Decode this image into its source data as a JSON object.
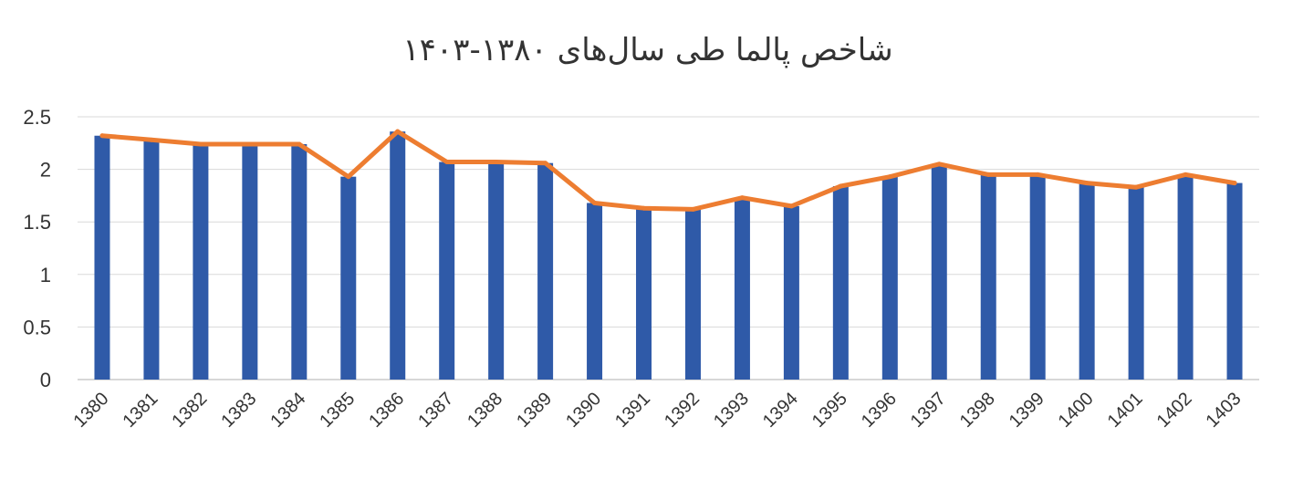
{
  "chart_data": {
    "type": "bar",
    "title": "شاخص پالما طی سال‌های ۱۳۸۰-۱۴۰۳",
    "xlabel": "",
    "ylabel": "",
    "categories": [
      "1380",
      "1381",
      "1382",
      "1383",
      "1384",
      "1385",
      "1386",
      "1387",
      "1388",
      "1389",
      "1390",
      "1391",
      "1392",
      "1393",
      "1394",
      "1395",
      "1396",
      "1397",
      "1398",
      "1399",
      "1400",
      "1401",
      "1402",
      "1403"
    ],
    "series": [
      {
        "type": "bar",
        "values": [
          2.32,
          2.28,
          2.24,
          2.24,
          2.24,
          1.93,
          2.36,
          2.07,
          2.07,
          2.06,
          1.68,
          1.63,
          1.62,
          1.73,
          1.65,
          1.84,
          1.93,
          2.05,
          1.95,
          1.95,
          1.87,
          1.83,
          1.95,
          1.87
        ],
        "color": "#2f5aa8"
      },
      {
        "type": "line",
        "values": [
          2.32,
          2.28,
          2.24,
          2.24,
          2.24,
          1.93,
          2.36,
          2.07,
          2.07,
          2.06,
          1.68,
          1.63,
          1.62,
          1.73,
          1.65,
          1.84,
          1.93,
          2.05,
          1.95,
          1.95,
          1.87,
          1.83,
          1.95,
          1.87
        ],
        "color": "#ed7d31"
      }
    ],
    "yticks": [
      "0",
      "0.5",
      "1",
      "1.5",
      "2",
      "2.5"
    ],
    "ylim": [
      0,
      2.5
    ],
    "grid": true,
    "legend": "none"
  }
}
